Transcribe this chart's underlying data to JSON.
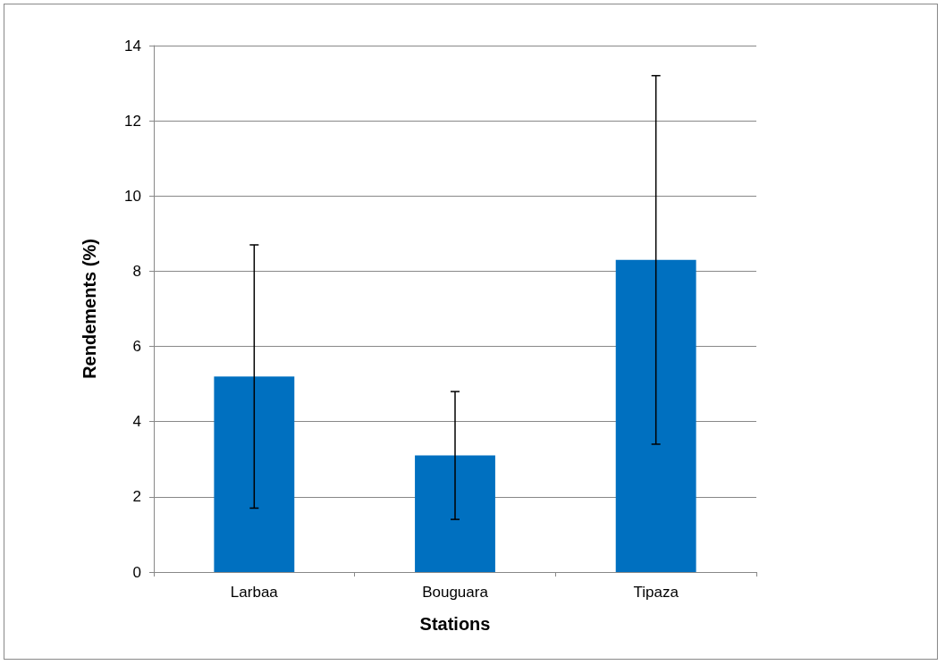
{
  "chart_data": {
    "type": "bar",
    "xlabel": "Stations",
    "ylabel": "Rendements (%)",
    "categories": [
      "Larbaa",
      "Bouguara",
      "Tipaza"
    ],
    "values": [
      5.2,
      3.1,
      8.3
    ],
    "errors": [
      3.5,
      1.7,
      4.9
    ],
    "color": "#0070c0",
    "ylim": [
      0,
      14
    ],
    "yticks": [
      0,
      2,
      4,
      6,
      8,
      10,
      12,
      14
    ],
    "grid": "y"
  }
}
